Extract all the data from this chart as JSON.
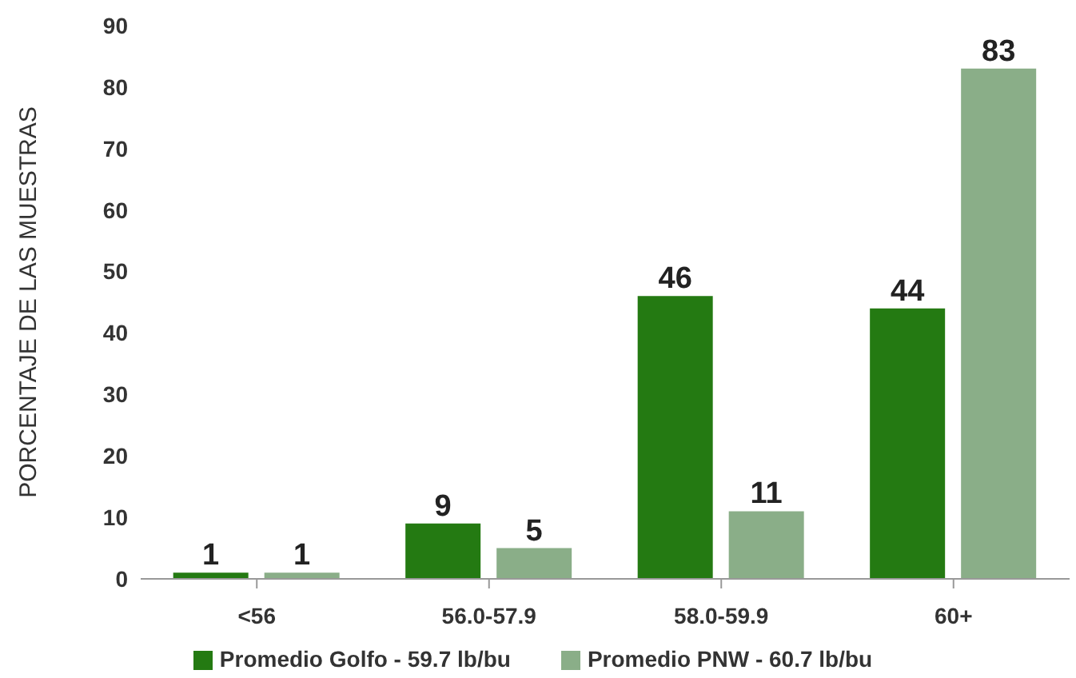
{
  "chart_data": {
    "type": "bar",
    "ylabel": "PORCENTAJE DE LAS MUESTRAS",
    "categories": [
      "<56",
      "56.0-57.9",
      "58.0-59.9",
      "60+"
    ],
    "series": [
      {
        "name": "Promedio Golfo - 59.7 lb/bu",
        "color": "#247a12",
        "values": [
          1,
          9,
          46,
          44
        ]
      },
      {
        "name": "Promedio PNW - 60.7 lb/bu",
        "color": "#8aae88",
        "values": [
          1,
          5,
          11,
          83
        ]
      }
    ],
    "ylim": [
      0,
      90
    ],
    "yticks": [
      0,
      10,
      20,
      30,
      40,
      50,
      60,
      70,
      80,
      90
    ],
    "grid": false,
    "legend": "bottom",
    "data_labels": true
  }
}
